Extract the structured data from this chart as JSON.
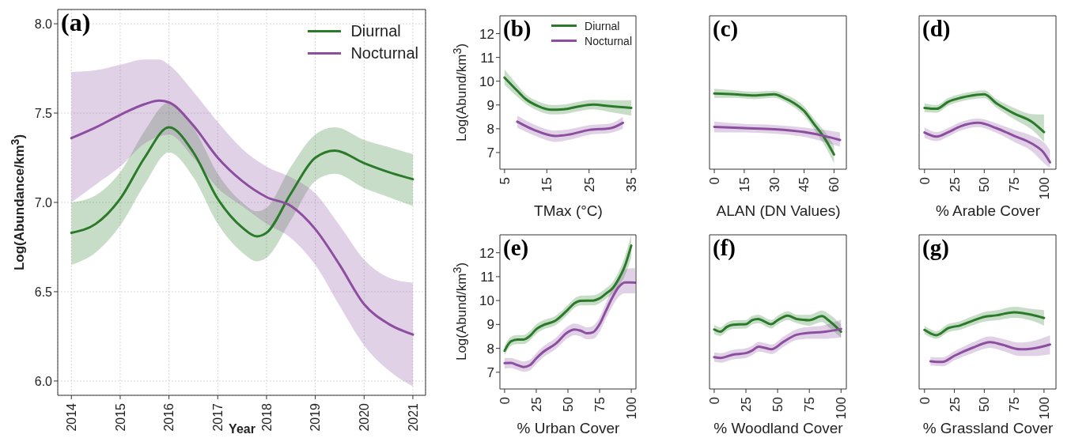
{
  "chart_data": [
    {
      "type": "line",
      "title": "(a)",
      "xlabel": "Year",
      "ylabel": "Log(Abundance/km$^{3}$)",
      "xlim": [
        2013.72,
        2021.26
      ],
      "xticks": [
        2014,
        2015,
        2016,
        2017,
        2018,
        2019,
        2020,
        2021
      ],
      "ylim": [
        5.92,
        8.08
      ],
      "yticks": [
        {
          "value": 6,
          "label": "6.0"
        },
        6.5,
        {
          "value": 7,
          "label": "7.0"
        },
        7.5,
        {
          "value": 8,
          "label": "8.0"
        }
      ],
      "grid": true,
      "legend": "top right",
      "series": [
        {
          "name": "Diurnal",
          "color": "#2a7a2a",
          "x": [
            2014,
            2014.5,
            2015,
            2015.5,
            2016,
            2016.5,
            2017,
            2017.5,
            2017.8,
            2018,
            2018.5,
            2019,
            2019.4,
            2020,
            2020.5,
            2021
          ],
          "values": [
            6.83,
            6.88,
            7.02,
            7.25,
            7.42,
            7.28,
            7.02,
            6.86,
            6.81,
            6.83,
            7.05,
            7.25,
            7.29,
            7.22,
            7.17,
            7.13
          ],
          "lower": [
            6.65,
            6.72,
            6.87,
            7.1,
            7.28,
            7.14,
            6.88,
            6.72,
            6.67,
            6.69,
            6.9,
            7.12,
            7.16,
            7.08,
            7.03,
            6.98
          ],
          "upper": [
            7.0,
            7.04,
            7.17,
            7.4,
            7.56,
            7.42,
            7.16,
            7.0,
            6.95,
            6.97,
            7.2,
            7.38,
            7.42,
            7.35,
            7.31,
            7.27
          ]
        },
        {
          "name": "Nocturnal",
          "color": "#8c4f9f",
          "x": [
            2014,
            2014.5,
            2015,
            2015.5,
            2015.8,
            2016,
            2016.5,
            2017,
            2017.5,
            2018,
            2018.5,
            2019,
            2019.5,
            2020,
            2020.5,
            2021
          ],
          "values": [
            7.36,
            7.42,
            7.49,
            7.55,
            7.57,
            7.56,
            7.43,
            7.25,
            7.12,
            7.03,
            6.98,
            6.85,
            6.65,
            6.43,
            6.32,
            6.26
          ],
          "lower": [
            7.0,
            7.1,
            7.2,
            7.33,
            7.37,
            7.38,
            7.25,
            7.08,
            6.98,
            6.88,
            6.8,
            6.65,
            6.42,
            6.2,
            6.06,
            5.97
          ],
          "upper": [
            7.73,
            7.74,
            7.77,
            7.8,
            7.8,
            7.77,
            7.62,
            7.45,
            7.3,
            7.2,
            7.14,
            7.05,
            6.87,
            6.68,
            6.58,
            6.55
          ]
        }
      ]
    },
    {
      "type": "line",
      "title": "(b)",
      "xlabel": "TMax (°C)",
      "ylabel": "Log(Abund/km$^{3}$)",
      "xlim": [
        3.9,
        36.1
      ],
      "xticks": [
        5,
        15,
        25,
        35
      ],
      "ylim": [
        6.3,
        12.75
      ],
      "yticks": [
        7,
        8,
        9,
        10,
        11,
        12
      ],
      "legend": "top right",
      "series": [
        {
          "name": "Diurnal",
          "color": "#2a7a2a",
          "x": [
            5,
            8,
            10,
            13,
            16,
            19,
            22,
            26,
            30,
            35
          ],
          "values": [
            10.15,
            9.6,
            9.25,
            8.95,
            8.8,
            8.82,
            8.92,
            9.02,
            8.95,
            8.88
          ],
          "lower": [
            9.85,
            9.35,
            9.05,
            8.75,
            8.6,
            8.62,
            8.72,
            8.82,
            8.7,
            8.55
          ],
          "upper": [
            10.5,
            9.85,
            9.45,
            9.15,
            9.0,
            9.02,
            9.12,
            9.22,
            9.2,
            9.2
          ]
        },
        {
          "name": "Nocturnal",
          "color": "#8c4f9f",
          "x": [
            8,
            12,
            17,
            20,
            25,
            30,
            33
          ],
          "values": [
            8.3,
            7.95,
            7.7,
            7.75,
            7.95,
            8.02,
            8.25
          ],
          "lower": [
            8.05,
            7.72,
            7.45,
            7.52,
            7.75,
            7.82,
            8.0
          ],
          "upper": [
            8.55,
            8.18,
            7.92,
            7.97,
            8.15,
            8.22,
            8.5
          ]
        }
      ]
    },
    {
      "type": "line",
      "title": "(c)",
      "xlabel": "ALAN (DN Values)",
      "xlim": [
        -2.4,
        66.2
      ],
      "xticks": [
        0,
        15,
        30,
        45,
        60
      ],
      "ylim": [
        6.3,
        12.75
      ],
      "tick_labels": "x",
      "series": [
        {
          "color": "#2a7a2a",
          "x": [
            0,
            10,
            20,
            30,
            35,
            40,
            45,
            50,
            55,
            60
          ],
          "values": [
            9.48,
            9.45,
            9.4,
            9.45,
            9.3,
            9.08,
            8.75,
            8.2,
            7.64,
            6.92
          ],
          "lower": [
            9.3,
            9.3,
            9.25,
            9.3,
            9.15,
            8.9,
            8.55,
            7.98,
            7.35,
            6.55
          ],
          "upper": [
            9.68,
            9.62,
            9.56,
            9.6,
            9.46,
            9.27,
            8.95,
            8.42,
            7.92,
            7.3
          ]
        },
        {
          "color": "#8c4f9f",
          "x": [
            0,
            15,
            30,
            45,
            55,
            63
          ],
          "values": [
            8.08,
            8.03,
            7.98,
            7.86,
            7.7,
            7.53
          ],
          "lower": [
            7.85,
            7.85,
            7.8,
            7.66,
            7.45,
            7.25
          ],
          "upper": [
            8.3,
            8.2,
            8.16,
            8.05,
            7.95,
            7.85
          ]
        }
      ]
    },
    {
      "type": "line",
      "title": "(d)",
      "xlabel": "% Arable Cover",
      "xlim": [
        -4.5,
        110
      ],
      "xticks": [
        0,
        25,
        50,
        75,
        100
      ],
      "ylim": [
        6.3,
        12.75
      ],
      "tick_labels": "x",
      "series": [
        {
          "color": "#2a7a2a",
          "x": [
            0,
            10,
            20,
            30,
            40,
            50,
            60,
            75,
            90,
            100
          ],
          "values": [
            8.88,
            8.84,
            9.14,
            9.3,
            9.4,
            9.45,
            9.08,
            8.64,
            8.29,
            7.86
          ],
          "lower": [
            8.7,
            8.68,
            8.98,
            9.14,
            9.24,
            9.28,
            8.9,
            8.4,
            7.95,
            7.45
          ],
          "upper": [
            9.07,
            9.0,
            9.3,
            9.46,
            9.56,
            9.62,
            9.26,
            8.88,
            8.62,
            8.6
          ]
        },
        {
          "color": "#8c4f9f",
          "x": [
            0,
            10,
            20,
            30,
            45,
            60,
            75,
            90,
            100,
            105
          ],
          "values": [
            7.84,
            7.67,
            7.86,
            8.1,
            8.25,
            8.03,
            7.7,
            7.37,
            6.98,
            6.59
          ],
          "lower": [
            7.62,
            7.48,
            7.68,
            7.92,
            8.07,
            7.83,
            7.45,
            7.05,
            6.55,
            6.35
          ],
          "upper": [
            8.06,
            7.86,
            8.04,
            8.28,
            8.43,
            8.23,
            7.95,
            7.7,
            7.42,
            7.1
          ]
        }
      ]
    },
    {
      "type": "line",
      "title": "(e)",
      "xlabel": "% Urban Cover",
      "ylabel": "Log(Abund/km$^{3}$)",
      "xlim": [
        -3.7,
        103.7
      ],
      "xticks": [
        0,
        25,
        50,
        75,
        100
      ],
      "ylim": [
        6.3,
        12.75
      ],
      "yticks": [
        7,
        8,
        9,
        10,
        11,
        12
      ],
      "series": [
        {
          "color": "#2a7a2a",
          "x": [
            0,
            5,
            10,
            15,
            20,
            25,
            30,
            40,
            50,
            55,
            60,
            70,
            75,
            80,
            85,
            90,
            95,
            100
          ],
          "values": [
            7.9,
            8.29,
            8.37,
            8.37,
            8.52,
            8.8,
            8.96,
            9.15,
            9.62,
            9.88,
            9.99,
            10.0,
            10.09,
            10.29,
            10.5,
            10.9,
            11.45,
            12.3
          ],
          "lower": [
            7.7,
            8.1,
            8.18,
            8.18,
            8.33,
            8.6,
            8.77,
            8.96,
            9.42,
            9.68,
            9.8,
            9.8,
            9.88,
            10.08,
            10.28,
            10.6,
            11.05,
            11.8
          ],
          "upper": [
            8.1,
            8.48,
            8.56,
            8.56,
            8.72,
            9.0,
            9.16,
            9.35,
            9.82,
            10.08,
            10.2,
            10.22,
            10.32,
            10.52,
            10.75,
            11.2,
            11.85,
            12.75
          ]
        },
        {
          "color": "#8c4f9f",
          "x": [
            0,
            5,
            10,
            15,
            20,
            25,
            30,
            40,
            50,
            55,
            60,
            65,
            70,
            75,
            80,
            85,
            90,
            95,
            100,
            103
          ],
          "values": [
            7.38,
            7.39,
            7.3,
            7.22,
            7.3,
            7.58,
            7.83,
            8.18,
            8.68,
            8.79,
            8.74,
            8.63,
            8.68,
            9.01,
            9.57,
            10.12,
            10.56,
            10.76,
            10.76,
            10.75
          ],
          "lower": [
            7.15,
            7.18,
            7.1,
            7.02,
            7.08,
            7.35,
            7.6,
            7.95,
            8.43,
            8.55,
            8.5,
            8.38,
            8.4,
            8.7,
            9.25,
            9.75,
            10.15,
            10.3,
            10.3,
            10.3
          ],
          "upper": [
            7.6,
            7.6,
            7.52,
            7.45,
            7.52,
            7.8,
            8.06,
            8.42,
            8.93,
            9.04,
            8.98,
            8.88,
            8.95,
            9.3,
            9.9,
            10.5,
            10.98,
            11.3,
            11.35,
            11.35
          ]
        }
      ]
    },
    {
      "type": "line",
      "title": "(f)",
      "xlabel": "% Woodland Cover",
      "xlim": [
        -3.7,
        104.2
      ],
      "xticks": [
        0,
        25,
        50,
        75,
        100
      ],
      "ylim": [
        6.3,
        12.75
      ],
      "tick_labels": "x",
      "series": [
        {
          "color": "#2a7a2a",
          "x": [
            0,
            5,
            10,
            15,
            25,
            30,
            34.5,
            45,
            50,
            58,
            65,
            75,
            85,
            90,
            100
          ],
          "values": [
            8.79,
            8.7,
            8.9,
            8.99,
            9.01,
            9.18,
            9.23,
            9.01,
            9.18,
            9.37,
            9.23,
            9.18,
            9.35,
            9.18,
            8.7
          ],
          "lower": [
            8.6,
            8.52,
            8.72,
            8.81,
            8.83,
            9.0,
            9.05,
            8.83,
            9.0,
            9.19,
            9.05,
            8.95,
            9.1,
            8.9,
            8.45
          ],
          "upper": [
            8.98,
            8.88,
            9.08,
            9.17,
            9.19,
            9.36,
            9.41,
            9.19,
            9.36,
            9.55,
            9.41,
            9.4,
            9.58,
            9.45,
            9.0
          ]
        },
        {
          "color": "#8c4f9f",
          "x": [
            0,
            5,
            15,
            25,
            30,
            35,
            40,
            45,
            55,
            65,
            75,
            85,
            100
          ],
          "values": [
            7.63,
            7.6,
            7.74,
            7.8,
            7.91,
            8.07,
            8.02,
            7.96,
            8.29,
            8.57,
            8.65,
            8.68,
            8.81
          ],
          "lower": [
            7.43,
            7.4,
            7.54,
            7.6,
            7.71,
            7.87,
            7.82,
            7.76,
            8.08,
            8.35,
            8.4,
            8.4,
            8.45
          ],
          "upper": [
            7.83,
            7.8,
            7.94,
            8.0,
            8.11,
            8.27,
            8.22,
            8.16,
            8.5,
            8.8,
            8.9,
            8.95,
            9.2
          ]
        }
      ]
    },
    {
      "type": "line",
      "title": "(g)",
      "xlabel": "% Grassland Cover",
      "xlim": [
        -4.5,
        110
      ],
      "xticks": [
        0,
        25,
        50,
        75,
        100
      ],
      "ylim": [
        6.3,
        12.75
      ],
      "tick_labels": "x",
      "series": [
        {
          "color": "#2a7a2a",
          "x": [
            0,
            5,
            10,
            20,
            30,
            40,
            50,
            60,
            75,
            90,
            100
          ],
          "values": [
            8.77,
            8.63,
            8.55,
            8.85,
            8.96,
            9.15,
            9.32,
            9.38,
            9.51,
            9.4,
            9.27
          ],
          "lower": [
            8.6,
            8.47,
            8.4,
            8.68,
            8.78,
            8.96,
            9.12,
            9.17,
            9.28,
            9.15,
            8.95
          ],
          "upper": [
            8.95,
            8.8,
            8.72,
            9.02,
            9.14,
            9.34,
            9.52,
            9.59,
            9.74,
            9.65,
            9.6
          ]
        },
        {
          "color": "#8c4f9f",
          "x": [
            5,
            15,
            25,
            40,
            55,
            65,
            80,
            90,
            105
          ],
          "values": [
            7.46,
            7.43,
            7.69,
            8.02,
            8.26,
            8.15,
            7.96,
            7.99,
            8.16
          ],
          "lower": [
            7.28,
            7.25,
            7.5,
            7.8,
            8.02,
            7.9,
            7.68,
            7.68,
            7.75
          ],
          "upper": [
            7.64,
            7.62,
            7.88,
            8.24,
            8.5,
            8.4,
            8.24,
            8.3,
            8.55
          ]
        }
      ]
    }
  ]
}
